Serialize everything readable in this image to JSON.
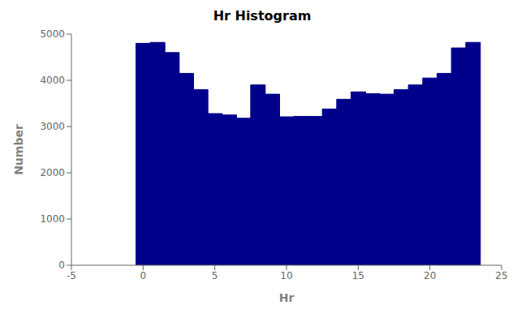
{
  "chart_data": {
    "type": "bar",
    "title": "Hr Histogram",
    "xlabel": "Hr",
    "ylabel": "Number",
    "x": [
      0,
      1,
      2,
      3,
      4,
      5,
      6,
      7,
      8,
      9,
      10,
      11,
      12,
      13,
      14,
      15,
      16,
      17,
      18,
      19,
      20,
      21,
      22,
      23
    ],
    "values": [
      4800,
      4820,
      4600,
      4150,
      3800,
      3280,
      3250,
      3180,
      3900,
      3700,
      3210,
      3220,
      3220,
      3380,
      3590,
      3750,
      3710,
      3700,
      3800,
      3900,
      4050,
      4150,
      4700,
      4820
    ],
    "color": "#00008B",
    "xlim": [
      -5,
      25
    ],
    "ylim": [
      0,
      5000
    ],
    "xticks": [
      -5,
      0,
      5,
      10,
      15,
      20,
      25
    ],
    "yticks": [
      0,
      1000,
      2000,
      3000,
      4000,
      5000
    ],
    "grid": false
  }
}
